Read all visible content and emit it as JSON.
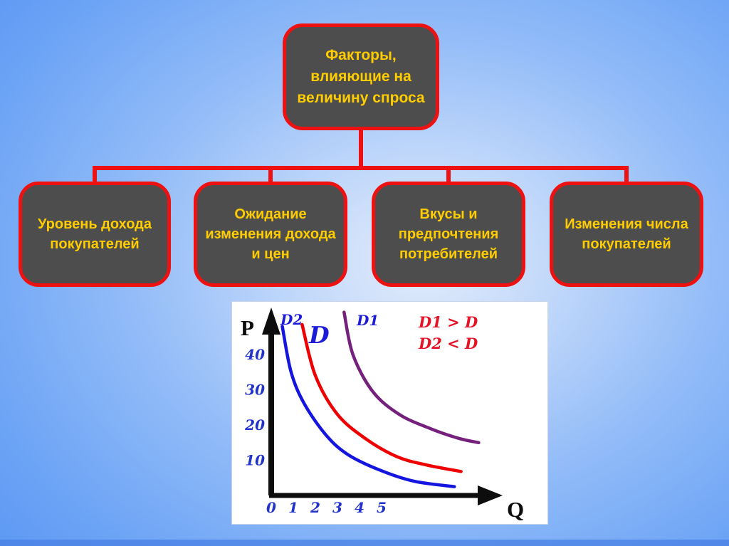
{
  "colors": {
    "background_blue": "#5592f2",
    "background_highlight": "#e3ecfb",
    "box_fill": "#4d4d4d",
    "box_border_red": "#ee1111",
    "box_text_yellow": "#ffcc00",
    "axis_black": "#0d0d0d",
    "tick_blue": "#2233cc",
    "legend_red": "#e51325"
  },
  "diagram": {
    "root": {
      "label": "Факторы,\nвлияющие на\nвеличину спроса"
    },
    "children": [
      {
        "label": "Уровень дохода\nпокупателей"
      },
      {
        "label": "Ожидание\nизменения дохода\nи цен"
      },
      {
        "label": "Вкусы и\nпредпочтения\nпотребителей"
      },
      {
        "label": "Изменения числа\nпокупателей"
      }
    ]
  },
  "chart_data": {
    "type": "line",
    "title": "",
    "xlabel": "Q",
    "ylabel": "P",
    "x_ticks": [
      0,
      1,
      2,
      3,
      4,
      5
    ],
    "y_ticks": [
      10,
      20,
      30,
      40
    ],
    "xlim": [
      0,
      10
    ],
    "ylim": [
      0,
      55
    ],
    "grid": false,
    "legend_position": "top-right",
    "annotations": [
      "D1 > D",
      "D2 < D"
    ],
    "series": [
      {
        "name": "D2",
        "color": "#1515e0",
        "points": [
          [
            0.5,
            48
          ],
          [
            0.9,
            35
          ],
          [
            1.5,
            26
          ],
          [
            2.5,
            17
          ],
          [
            3.5,
            11.5
          ],
          [
            5,
            7
          ],
          [
            6.5,
            4
          ],
          [
            8.3,
            2.5
          ]
        ]
      },
      {
        "name": "D",
        "color": "#ee0000",
        "points": [
          [
            1.4,
            48.5
          ],
          [
            2,
            34
          ],
          [
            3,
            23
          ],
          [
            4.3,
            16
          ],
          [
            5.7,
            11
          ],
          [
            7,
            8.7
          ],
          [
            8.6,
            6.8
          ]
        ]
      },
      {
        "name": "D1",
        "color": "#75207d",
        "points": [
          [
            3.3,
            52
          ],
          [
            3.7,
            40
          ],
          [
            4.6,
            29.5
          ],
          [
            5.8,
            23
          ],
          [
            7.2,
            19
          ],
          [
            8.5,
            16.2
          ],
          [
            9.4,
            15
          ]
        ]
      }
    ]
  }
}
